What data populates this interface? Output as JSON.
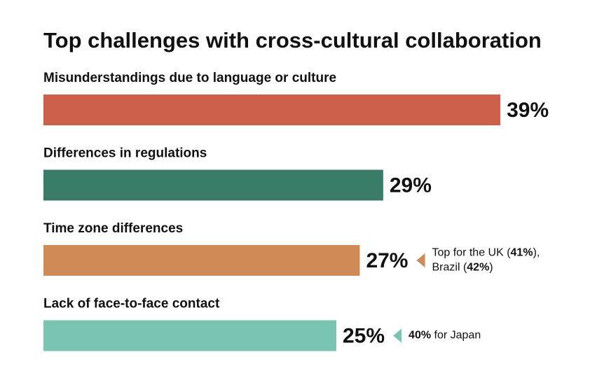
{
  "chart_data": {
    "type": "bar",
    "orientation": "horizontal",
    "title": "Top challenges with cross-cultural collaboration",
    "categories": [
      "Misunderstandings due to language or culture",
      "Differences in regulations",
      "Time zone differences",
      "Lack of face-to-face contact"
    ],
    "values": [
      39,
      29,
      27,
      25
    ],
    "value_labels": [
      "39%",
      "29%",
      "27%",
      "25%"
    ],
    "colors": [
      "#cd5f4a",
      "#3a7b69",
      "#d08a55",
      "#79c4b2"
    ],
    "annotations": [
      null,
      null,
      [
        [
          {
            "text": "Top for the UK ("
          },
          {
            "text": "41%",
            "bold": true
          },
          {
            "text": "),"
          }
        ],
        [
          {
            "text": "Brazil ("
          },
          {
            "text": "42%",
            "bold": true
          },
          {
            "text": ")"
          }
        ]
      ],
      [
        [
          {
            "text": "40%",
            "bold": true
          },
          {
            "text": " for Japan"
          }
        ]
      ]
    ]
  }
}
